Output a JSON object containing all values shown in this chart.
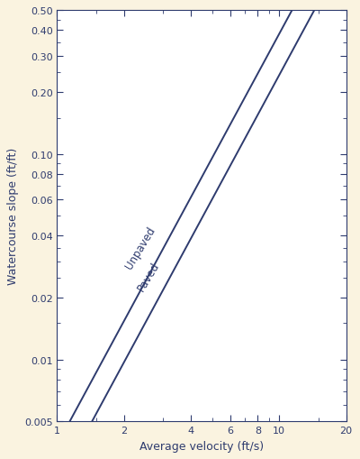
{
  "xlabel": "Average velocity (ft/s)",
  "ylabel": "Watercourse slope (ft/ft)",
  "xlim": [
    1,
    20
  ],
  "ylim": [
    0.005,
    0.5
  ],
  "line_color": "#2e3b6e",
  "line_width": 1.4,
  "background_color": "#faf3e0",
  "plot_background": "#ffffff",
  "label_unpaved": "Unpaved",
  "label_paved": "Paved",
  "k_unpaved": 16.1345,
  "k_paved": 20.3282,
  "label_fontsize": 8.5,
  "axis_label_fontsize": 9,
  "tick_fontsize": 8,
  "y_major_ticks": [
    0.005,
    0.01,
    0.02,
    0.04,
    0.06,
    0.08,
    0.1,
    0.2,
    0.3,
    0.4,
    0.5
  ],
  "y_tick_labels": [
    "0.005",
    "0.01",
    "0.02",
    "0.04",
    "0.06",
    "0.08",
    "0.10",
    "0.20",
    "0.30",
    "0.40",
    "0.50"
  ],
  "x_major_ticks": [
    1,
    2,
    4,
    6,
    8,
    10,
    20
  ],
  "x_tick_labels": [
    "1",
    "2",
    "4",
    "6",
    "8",
    "10",
    "20"
  ]
}
